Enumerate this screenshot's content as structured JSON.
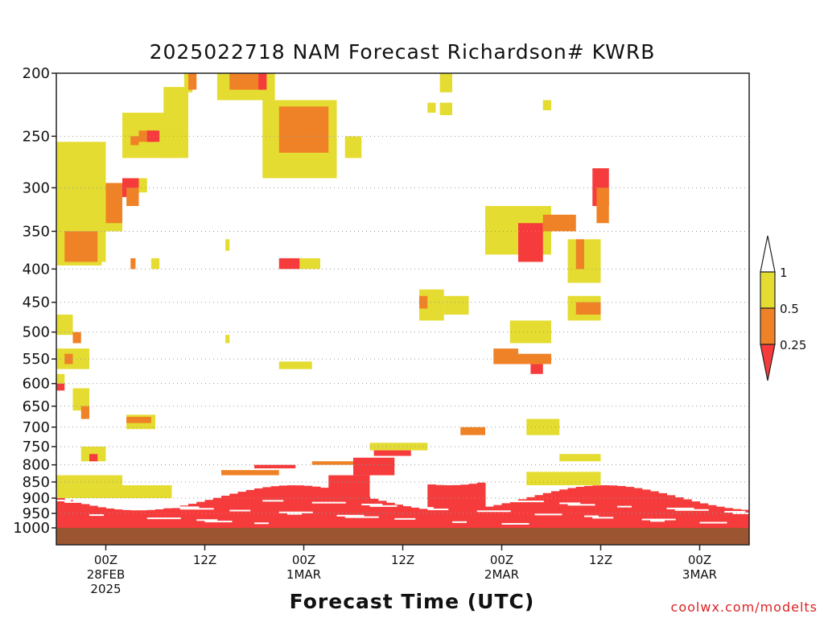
{
  "chart_data": {
    "type": "heatmap",
    "title": "2025022718 NAM Forecast Richardson# KWRB",
    "xlabel": "Forecast Time (UTC)",
    "ylabel": "",
    "y_scale": "log-pressure (hPa), inverted",
    "ylim": [
      1000,
      200
    ],
    "yticks": [
      200,
      250,
      300,
      350,
      400,
      450,
      500,
      550,
      600,
      650,
      700,
      750,
      800,
      850,
      900,
      950,
      1000
    ],
    "xlim": [
      "2025-02-27 18Z",
      "2025-03-03 06Z"
    ],
    "x_ticks": [
      {
        "time": "2025-02-28 00Z",
        "lines": [
          "00Z",
          "28FEB",
          "2025"
        ]
      },
      {
        "time": "2025-02-28 12Z",
        "lines": [
          "12Z"
        ]
      },
      {
        "time": "2025-03-01 00Z",
        "lines": [
          "00Z",
          "1MAR"
        ]
      },
      {
        "time": "2025-03-01 12Z",
        "lines": [
          "12Z"
        ]
      },
      {
        "time": "2025-03-02 00Z",
        "lines": [
          "00Z",
          "2MAR"
        ]
      },
      {
        "time": "2025-03-02 12Z",
        "lines": [
          "12Z"
        ]
      },
      {
        "time": "2025-03-03 00Z",
        "lines": [
          "00Z",
          "3MAR"
        ]
      }
    ],
    "grid": "dotted horizontal lines at pressure ticks",
    "legend": {
      "placement": "right",
      "levels": [
        "1",
        "0.5",
        "0.25"
      ],
      "bins": [
        {
          "range": "> 1",
          "color": "#ffffff"
        },
        {
          "range": "0.5 - 1",
          "color": "#e4dc30"
        },
        {
          "range": "0.25 - 0.5",
          "color": "#ef8226"
        },
        {
          "range": "< 0.25",
          "color": "#f53b3b"
        }
      ]
    },
    "ground_color": "#9b5530",
    "regions": [
      {
        "category": "0.5 - 1",
        "t": [
          0,
          6
        ],
        "p": [
          390,
          255
        ]
      },
      {
        "category": "0.5 - 1",
        "t": [
          8,
          14
        ],
        "p": [
          270,
          230
        ]
      },
      {
        "category": "0.25 - 0.5",
        "t": [
          10,
          12
        ],
        "p": [
          255,
          245
        ]
      },
      {
        "category": "< 0.25",
        "t": [
          11,
          12.5
        ],
        "p": [
          255,
          245
        ]
      },
      {
        "category": "0.25 - 0.5",
        "t": [
          9,
          10
        ],
        "p": [
          258,
          250
        ]
      },
      {
        "category": "0.5 - 1",
        "t": [
          13,
          16
        ],
        "p": [
          270,
          210
        ]
      },
      {
        "category": "0.5 - 1",
        "t": [
          15.5,
          16.5
        ],
        "p": [
          214,
          200
        ]
      },
      {
        "category": "0.25 - 0.5",
        "t": [
          16,
          17
        ],
        "p": [
          212,
          200
        ]
      },
      {
        "category": "0.5 - 1",
        "t": [
          19.5,
          26.5
        ],
        "p": [
          220,
          200
        ]
      },
      {
        "category": "0.25 - 0.5",
        "t": [
          21,
          25
        ],
        "p": [
          212,
          200
        ]
      },
      {
        "category": "< 0.25",
        "t": [
          24.5,
          25.5
        ],
        "p": [
          212,
          200
        ]
      },
      {
        "category": "0.5 - 1",
        "t": [
          25,
          34
        ],
        "p": [
          290,
          220
        ]
      },
      {
        "category": "0.25 - 0.5",
        "t": [
          27,
          33
        ],
        "p": [
          265,
          225
        ]
      },
      {
        "category": "0.5 - 1",
        "t": [
          35,
          37
        ],
        "p": [
          270,
          250
        ]
      },
      {
        "category": "0.5 - 1",
        "t": [
          46.5,
          48
        ],
        "p": [
          214,
          200
        ]
      },
      {
        "category": "0.5 - 1",
        "t": [
          45,
          46
        ],
        "p": [
          230,
          222
        ]
      },
      {
        "category": "0.5 - 1",
        "t": [
          46.5,
          48
        ],
        "p": [
          232,
          222
        ]
      },
      {
        "category": "0.5 - 1",
        "t": [
          59,
          60
        ],
        "p": [
          228,
          220
        ]
      },
      {
        "category": "0.5 - 1",
        "t": [
          0,
          5.5
        ],
        "p": [
          395,
          345
        ]
      },
      {
        "category": "0.25 - 0.5",
        "t": [
          1,
          5
        ],
        "p": [
          390,
          350
        ]
      },
      {
        "category": "0.5 - 1",
        "t": [
          5,
          8
        ],
        "p": [
          350,
          300
        ]
      },
      {
        "category": "0.25 - 0.5",
        "t": [
          6,
          8
        ],
        "p": [
          340,
          295
        ]
      },
      {
        "category": "< 0.25",
        "t": [
          8,
          10
        ],
        "p": [
          310,
          290
        ]
      },
      {
        "category": "0.5 - 1",
        "t": [
          10,
          11
        ],
        "p": [
          305,
          290
        ]
      },
      {
        "category": "0.25 - 0.5",
        "t": [
          8.5,
          10
        ],
        "p": [
          320,
          300
        ]
      },
      {
        "category": "0.5 - 1",
        "t": [
          11.5,
          12.5
        ],
        "p": [
          400,
          385
        ]
      },
      {
        "category": "0.25 - 0.5",
        "t": [
          9,
          9.6
        ],
        "p": [
          400,
          385
        ]
      },
      {
        "category": "< 0.25",
        "t": [
          27,
          29.5
        ],
        "p": [
          400,
          385
        ]
      },
      {
        "category": "0.5 - 1",
        "t": [
          29.5,
          32
        ],
        "p": [
          400,
          385
        ]
      },
      {
        "category": "0.5 - 1",
        "t": [
          20.5,
          21
        ],
        "p": [
          375,
          360
        ]
      },
      {
        "category": "0.5 - 1",
        "t": [
          27,
          31
        ],
        "p": [
          570,
          555
        ]
      },
      {
        "category": "0.5 - 1",
        "t": [
          20.5,
          21
        ],
        "p": [
          520,
          505
        ]
      },
      {
        "category": "0.5 - 1",
        "t": [
          0,
          2
        ],
        "p": [
          505,
          470
        ]
      },
      {
        "category": "0.5 - 1",
        "t": [
          0,
          4
        ],
        "p": [
          570,
          530
        ]
      },
      {
        "category": "0.25 - 0.5",
        "t": [
          1,
          2
        ],
        "p": [
          560,
          540
        ]
      },
      {
        "category": "0.25 - 0.5",
        "t": [
          2,
          3
        ],
        "p": [
          520,
          500
        ]
      },
      {
        "category": "0.5 - 1",
        "t": [
          2,
          4
        ],
        "p": [
          660,
          610
        ]
      },
      {
        "category": "0.5 - 1",
        "t": [
          0,
          1
        ],
        "p": [
          600,
          580
        ]
      },
      {
        "category": "< 0.25",
        "t": [
          0,
          1
        ],
        "p": [
          615,
          600
        ]
      },
      {
        "category": "0.25 - 0.5",
        "t": [
          3,
          4
        ],
        "p": [
          680,
          650
        ]
      },
      {
        "category": "0.5 - 1",
        "t": [
          8.5,
          12
        ],
        "p": [
          705,
          670
        ]
      },
      {
        "category": "0.25 - 0.5",
        "t": [
          8.5,
          11.5
        ],
        "p": [
          690,
          675
        ]
      },
      {
        "category": "0.5 - 1",
        "t": [
          3,
          6
        ],
        "p": [
          790,
          750
        ]
      },
      {
        "category": "< 0.25",
        "t": [
          4,
          5
        ],
        "p": [
          790,
          770
        ]
      },
      {
        "category": "0.5 - 1",
        "t": [
          0,
          8
        ],
        "p": [
          860,
          830
        ]
      },
      {
        "category": "0.5 - 1",
        "t": [
          0,
          14
        ],
        "p": [
          900,
          860
        ]
      },
      {
        "category": "0.25 - 0.5",
        "t": [
          20,
          27
        ],
        "p": [
          830,
          815
        ]
      },
      {
        "category": "< 0.25",
        "t": [
          24,
          29
        ],
        "p": [
          810,
          800
        ]
      },
      {
        "category": "0.25 - 0.5",
        "t": [
          31,
          37
        ],
        "p": [
          800,
          790
        ]
      },
      {
        "category": "0.5 - 1",
        "t": [
          38,
          45
        ],
        "p": [
          760,
          740
        ]
      },
      {
        "category": "< 0.25",
        "t": [
          38.5,
          43
        ],
        "p": [
          775,
          760
        ]
      },
      {
        "category": "< 0.25",
        "t": [
          36,
          41
        ],
        "p": [
          830,
          780
        ]
      },
      {
        "category": "< 0.25",
        "t": [
          33,
          38
        ],
        "p": [
          900,
          830
        ]
      },
      {
        "category": "0.5 - 1",
        "t": [
          44,
          47
        ],
        "p": [
          480,
          430
        ]
      },
      {
        "category": "0.25 - 0.5",
        "t": [
          44,
          45
        ],
        "p": [
          460,
          440
        ]
      },
      {
        "category": "0.5 - 1",
        "t": [
          47,
          50
        ],
        "p": [
          470,
          440
        ]
      },
      {
        "category": "0.25 - 0.5",
        "t": [
          53,
          56
        ],
        "p": [
          560,
          530
        ]
      },
      {
        "category": "< 0.25",
        "t": [
          55.5,
          56.5
        ],
        "p": [
          350,
          320
        ]
      },
      {
        "category": "0.5 - 1",
        "t": [
          52,
          60
        ],
        "p": [
          380,
          320
        ]
      },
      {
        "category": "< 0.25",
        "t": [
          56,
          59
        ],
        "p": [
          390,
          340
        ]
      },
      {
        "category": "0.25 - 0.5",
        "t": [
          59,
          63
        ],
        "p": [
          350,
          330
        ]
      },
      {
        "category": "< 0.25",
        "t": [
          57.5,
          59
        ],
        "p": [
          580,
          560
        ]
      },
      {
        "category": "0.25 - 0.5",
        "t": [
          56,
          60
        ],
        "p": [
          560,
          540
        ]
      },
      {
        "category": "0.5 - 1",
        "t": [
          55,
          60
        ],
        "p": [
          520,
          480
        ]
      },
      {
        "category": "0.5 - 1",
        "t": [
          62,
          66
        ],
        "p": [
          480,
          440
        ]
      },
      {
        "category": "0.25 - 0.5",
        "t": [
          63,
          66
        ],
        "p": [
          470,
          450
        ]
      },
      {
        "category": "0.5 - 1",
        "t": [
          62,
          66
        ],
        "p": [
          420,
          360
        ]
      },
      {
        "category": "0.25 - 0.5",
        "t": [
          63,
          64
        ],
        "p": [
          400,
          360
        ]
      },
      {
        "category": "< 0.25",
        "t": [
          65,
          67
        ],
        "p": [
          320,
          280
        ]
      },
      {
        "category": "0.25 - 0.5",
        "t": [
          65.5,
          67
        ],
        "p": [
          340,
          300
        ]
      },
      {
        "category": "0.5 - 1",
        "t": [
          57,
          66
        ],
        "p": [
          860,
          820
        ]
      },
      {
        "category": "0.5 - 1",
        "t": [
          61,
          66
        ],
        "p": [
          790,
          770
        ]
      },
      {
        "category": "0.5 - 1",
        "t": [
          57,
          61
        ],
        "p": [
          720,
          680
        ]
      },
      {
        "category": "0.25 - 0.5",
        "t": [
          49,
          52
        ],
        "p": [
          720,
          700
        ]
      }
    ]
  },
  "credit": "coolwx.com/modelts"
}
